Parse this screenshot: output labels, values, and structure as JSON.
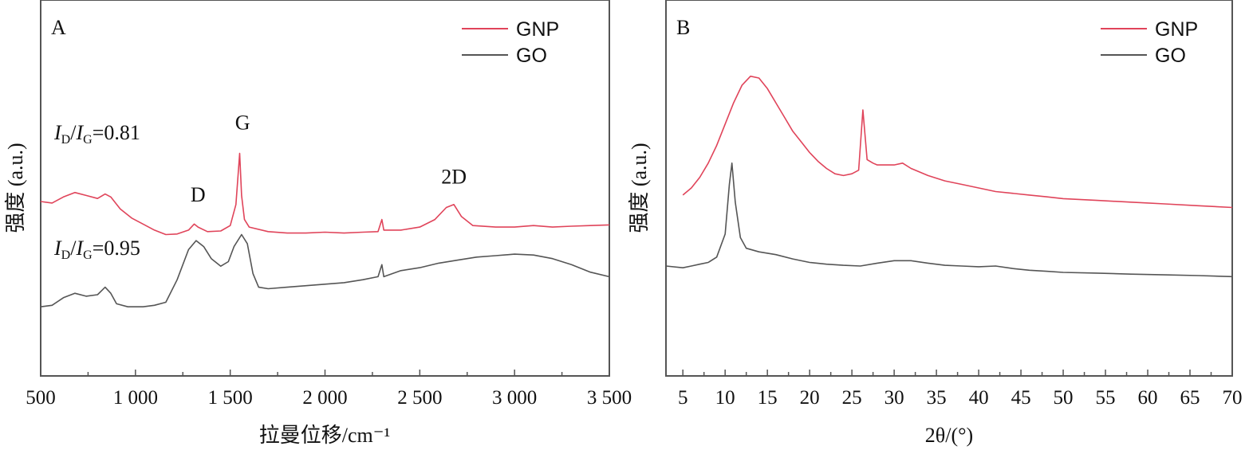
{
  "chart_data": [
    {
      "type": "line",
      "panel": "A",
      "xlabel": "拉曼位移/cm⁻¹",
      "ylabel": "强度 (a.u.)",
      "xlim": [
        500,
        3500
      ],
      "x_ticks": [
        500,
        1000,
        1500,
        2000,
        2500,
        3000,
        3500
      ],
      "x_tick_labels": [
        "500",
        "1 000",
        "1 500",
        "2 000",
        "2 500",
        "3 000",
        "3 500"
      ],
      "y_ticks_shown": false,
      "legend_placement": "top-right",
      "legend": [
        "GNP",
        "GO"
      ],
      "series": [
        {
          "name": "GNP",
          "color": "#e0445a",
          "points": [
            [
              500,
              3.8
            ],
            [
              560,
              3.75
            ],
            [
              620,
              3.95
            ],
            [
              680,
              4.1
            ],
            [
              740,
              4.0
            ],
            [
              800,
              3.9
            ],
            [
              840,
              4.05
            ],
            [
              870,
              3.95
            ],
            [
              920,
              3.55
            ],
            [
              980,
              3.25
            ],
            [
              1040,
              3.05
            ],
            [
              1100,
              2.85
            ],
            [
              1160,
              2.7
            ],
            [
              1220,
              2.72
            ],
            [
              1280,
              2.85
            ],
            [
              1310,
              3.05
            ],
            [
              1330,
              2.95
            ],
            [
              1380,
              2.8
            ],
            [
              1450,
              2.82
            ],
            [
              1500,
              3.0
            ],
            [
              1530,
              3.7
            ],
            [
              1550,
              5.4
            ],
            [
              1560,
              4.0
            ],
            [
              1575,
              3.2
            ],
            [
              1600,
              2.95
            ],
            [
              1700,
              2.8
            ],
            [
              1800,
              2.75
            ],
            [
              1900,
              2.75
            ],
            [
              2000,
              2.78
            ],
            [
              2100,
              2.75
            ],
            [
              2200,
              2.78
            ],
            [
              2280,
              2.8
            ],
            [
              2300,
              3.2
            ],
            [
              2310,
              2.85
            ],
            [
              2400,
              2.85
            ],
            [
              2500,
              2.95
            ],
            [
              2580,
              3.2
            ],
            [
              2640,
              3.6
            ],
            [
              2680,
              3.7
            ],
            [
              2720,
              3.3
            ],
            [
              2780,
              3.0
            ],
            [
              2900,
              2.95
            ],
            [
              3000,
              2.95
            ],
            [
              3100,
              3.0
            ],
            [
              3200,
              2.95
            ],
            [
              3300,
              2.98
            ],
            [
              3400,
              3.0
            ],
            [
              3500,
              3.02
            ]
          ],
          "annotations": [
            {
              "text": "D",
              "x": 1330,
              "y": 3.8
            },
            {
              "text": "G",
              "x": 1565,
              "y": 6.2
            },
            {
              "text": "2D",
              "x": 2680,
              "y": 4.4
            }
          ]
        },
        {
          "name": "GO",
          "color": "#555555",
          "points": [
            [
              500,
              0.3
            ],
            [
              560,
              0.35
            ],
            [
              620,
              0.6
            ],
            [
              680,
              0.75
            ],
            [
              740,
              0.65
            ],
            [
              800,
              0.7
            ],
            [
              840,
              0.95
            ],
            [
              870,
              0.75
            ],
            [
              900,
              0.4
            ],
            [
              960,
              0.3
            ],
            [
              1040,
              0.3
            ],
            [
              1100,
              0.35
            ],
            [
              1160,
              0.45
            ],
            [
              1220,
              1.2
            ],
            [
              1280,
              2.2
            ],
            [
              1320,
              2.5
            ],
            [
              1360,
              2.3
            ],
            [
              1400,
              1.9
            ],
            [
              1450,
              1.65
            ],
            [
              1490,
              1.8
            ],
            [
              1520,
              2.3
            ],
            [
              1560,
              2.7
            ],
            [
              1590,
              2.4
            ],
            [
              1620,
              1.4
            ],
            [
              1650,
              0.95
            ],
            [
              1700,
              0.9
            ],
            [
              1800,
              0.95
            ],
            [
              1900,
              1.0
            ],
            [
              2000,
              1.05
            ],
            [
              2100,
              1.1
            ],
            [
              2200,
              1.2
            ],
            [
              2280,
              1.3
            ],
            [
              2300,
              1.7
            ],
            [
              2310,
              1.3
            ],
            [
              2400,
              1.5
            ],
            [
              2500,
              1.6
            ],
            [
              2600,
              1.75
            ],
            [
              2700,
              1.85
            ],
            [
              2800,
              1.95
            ],
            [
              2900,
              2.0
            ],
            [
              3000,
              2.05
            ],
            [
              3100,
              2.02
            ],
            [
              3200,
              1.9
            ],
            [
              3300,
              1.7
            ],
            [
              3400,
              1.45
            ],
            [
              3500,
              1.3
            ]
          ],
          "annotations": []
        }
      ],
      "ratio_labels": [
        {
          "text_prefix": "I",
          "sub1": "D",
          "slash": "/",
          "text_mid": "I",
          "sub2": "G",
          "value": "=0.81"
        },
        {
          "text_prefix": "I",
          "sub1": "D",
          "slash": "/",
          "text_mid": "I",
          "sub2": "G",
          "value": "=0.95"
        }
      ]
    },
    {
      "type": "line",
      "panel": "B",
      "xlabel": "2θ/(°)",
      "ylabel": "强度 (a.u.)",
      "xlim": [
        3,
        70
      ],
      "x_ticks": [
        5,
        10,
        15,
        20,
        25,
        30,
        35,
        40,
        45,
        50,
        55,
        60,
        65,
        70
      ],
      "x_tick_labels": [
        "5",
        "10",
        "15",
        "20",
        "25",
        "30",
        "35",
        "40",
        "45",
        "50",
        "55",
        "60",
        "65",
        "70"
      ],
      "y_ticks_shown": false,
      "legend_placement": "top-right",
      "legend": [
        "GNP",
        "GO"
      ],
      "series": [
        {
          "name": "GNP",
          "color": "#e0445a",
          "points": [
            [
              5,
              2.4
            ],
            [
              6,
              2.6
            ],
            [
              7,
              2.9
            ],
            [
              8,
              3.3
            ],
            [
              9,
              3.8
            ],
            [
              10,
              4.4
            ],
            [
              11,
              5.0
            ],
            [
              12,
              5.5
            ],
            [
              13,
              5.75
            ],
            [
              14,
              5.7
            ],
            [
              15,
              5.4
            ],
            [
              16,
              5.0
            ],
            [
              17,
              4.6
            ],
            [
              18,
              4.2
            ],
            [
              19,
              3.9
            ],
            [
              20,
              3.6
            ],
            [
              21,
              3.35
            ],
            [
              22,
              3.15
            ],
            [
              23,
              3.0
            ],
            [
              24,
              2.95
            ],
            [
              25,
              3.0
            ],
            [
              25.8,
              3.1
            ],
            [
              26.3,
              4.8
            ],
            [
              26.8,
              3.4
            ],
            [
              27.5,
              3.3
            ],
            [
              28,
              3.25
            ],
            [
              30,
              3.25
            ],
            [
              31,
              3.3
            ],
            [
              32,
              3.15
            ],
            [
              34,
              2.95
            ],
            [
              36,
              2.8
            ],
            [
              38,
              2.7
            ],
            [
              40,
              2.6
            ],
            [
              42,
              2.5
            ],
            [
              44,
              2.45
            ],
            [
              46,
              2.4
            ],
            [
              48,
              2.35
            ],
            [
              50,
              2.3
            ],
            [
              54,
              2.25
            ],
            [
              58,
              2.2
            ],
            [
              62,
              2.15
            ],
            [
              66,
              2.1
            ],
            [
              70,
              2.05
            ]
          ],
          "annotations": []
        },
        {
          "name": "GO",
          "color": "#555555",
          "points": [
            [
              3,
              0.4
            ],
            [
              5,
              0.35
            ],
            [
              6,
              0.4
            ],
            [
              7,
              0.45
            ],
            [
              8,
              0.5
            ],
            [
              9,
              0.65
            ],
            [
              10,
              1.3
            ],
            [
              10.5,
              2.7
            ],
            [
              10.8,
              3.3
            ],
            [
              11.2,
              2.2
            ],
            [
              11.8,
              1.2
            ],
            [
              12.5,
              0.9
            ],
            [
              14,
              0.8
            ],
            [
              16,
              0.72
            ],
            [
              18,
              0.6
            ],
            [
              20,
              0.5
            ],
            [
              22,
              0.45
            ],
            [
              24,
              0.42
            ],
            [
              26,
              0.4
            ],
            [
              28,
              0.48
            ],
            [
              30,
              0.55
            ],
            [
              32,
              0.55
            ],
            [
              34,
              0.48
            ],
            [
              36,
              0.42
            ],
            [
              38,
              0.4
            ],
            [
              40,
              0.38
            ],
            [
              42,
              0.4
            ],
            [
              44,
              0.33
            ],
            [
              46,
              0.28
            ],
            [
              48,
              0.25
            ],
            [
              50,
              0.22
            ],
            [
              54,
              0.2
            ],
            [
              58,
              0.17
            ],
            [
              62,
              0.15
            ],
            [
              66,
              0.13
            ],
            [
              70,
              0.1
            ]
          ],
          "annotations": []
        }
      ]
    }
  ]
}
